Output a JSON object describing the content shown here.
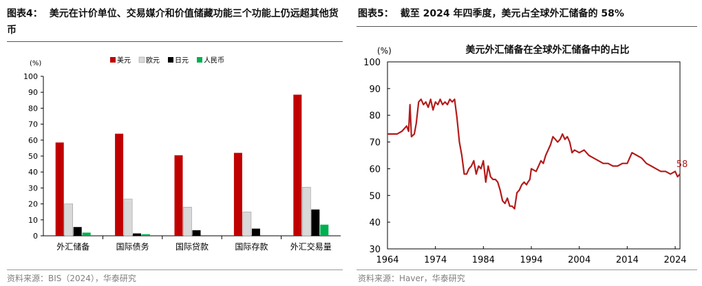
{
  "left": {
    "figure_no": "图表4：",
    "title": "美元在计价单位、交易媒介和价值储藏功能三个功能上仍远超其他货币",
    "source": "资料来源：BIS（2024），华泰研究",
    "chart_data": {
      "type": "bar",
      "title": "",
      "ylabel": "(%)",
      "ylim": [
        0,
        100
      ],
      "yticks": [
        0,
        10,
        20,
        30,
        40,
        50,
        60,
        70,
        80,
        90,
        100
      ],
      "categories": [
        "外汇储备",
        "国际债务",
        "国际贷款",
        "国际存款",
        "外汇交易量"
      ],
      "series": [
        {
          "name": "美元",
          "color": "#c00000",
          "values": [
            58.5,
            64,
            50.5,
            52,
            88.5
          ]
        },
        {
          "name": "欧元",
          "color": "#d9d9d9",
          "values": [
            20,
            23,
            18,
            15,
            30.5
          ]
        },
        {
          "name": "日元",
          "color": "#000000",
          "values": [
            5.5,
            1.5,
            3.5,
            4.5,
            16.5
          ]
        },
        {
          "name": "人民币",
          "color": "#00b050",
          "values": [
            2,
            1,
            0,
            0,
            7
          ]
        }
      ],
      "legend": "top"
    }
  },
  "right": {
    "figure_no": "图表5：",
    "title": "截至 2024 年四季度，美元占全球外汇储备的 58%",
    "source": "资料来源：Haver，华泰研究",
    "chart_data": {
      "type": "line",
      "title": "美元外汇储备在全球外汇储备中的占比",
      "ylabel": "(%)",
      "xlim": [
        1964,
        2025
      ],
      "ylim": [
        30,
        100
      ],
      "xticks": [
        1964,
        1974,
        1984,
        1994,
        2004,
        2014,
        2024
      ],
      "yticks": [
        30,
        40,
        50,
        60,
        70,
        80,
        90,
        100
      ],
      "series": [
        {
          "name": "美元占比",
          "color": "#b31b1b",
          "x": [
            1964,
            1966,
            1967,
            1968,
            1968.4,
            1968.7,
            1969,
            1969.6,
            1970,
            1970.5,
            1971,
            1971.5,
            1972,
            1972.5,
            1973,
            1973.5,
            1974,
            1974.5,
            1975,
            1975.5,
            1976,
            1976.5,
            1977,
            1977.5,
            1978,
            1978.5,
            1979,
            1979.5,
            1980,
            1980.5,
            1981,
            1981.5,
            1982,
            1982.5,
            1983,
            1983.5,
            1984,
            1984.5,
            1985,
            1985.5,
            1986,
            1986.5,
            1987,
            1987.5,
            1988,
            1988.5,
            1989,
            1989.5,
            1990,
            1990.5,
            1991,
            1991.5,
            1992,
            1992.5,
            1993,
            1993.3,
            1993.7,
            1994,
            1995,
            1996,
            1996.5,
            1997,
            1998,
            1998.5,
            1999,
            1999.5,
            2000,
            2000.5,
            2001,
            2001.5,
            2002,
            2002.5,
            2003,
            2004,
            2005,
            2006,
            2007,
            2008,
            2009,
            2010,
            2011,
            2012,
            2013,
            2014,
            2015,
            2016,
            2017,
            2018,
            2019,
            2020,
            2021,
            2022,
            2023,
            2024,
            2024.5,
            2025
          ],
          "y": [
            73,
            73,
            74,
            76,
            74,
            84,
            72,
            73,
            77,
            85,
            86,
            84,
            85,
            83,
            86,
            82,
            85,
            84,
            86,
            84,
            85,
            84,
            86,
            85,
            86,
            79,
            70,
            65,
            58,
            58,
            60,
            61,
            63,
            58,
            61,
            60,
            63,
            55,
            61,
            57,
            56,
            56,
            55,
            52,
            48,
            47,
            49,
            46,
            46,
            45,
            51,
            52,
            54,
            55,
            54,
            55,
            56,
            60,
            59,
            63,
            62,
            65,
            69,
            72,
            71,
            70,
            71,
            73,
            71,
            72,
            70,
            66,
            67,
            66,
            67,
            65,
            64,
            63,
            62,
            62,
            61,
            61,
            62,
            62,
            66,
            65,
            64,
            62,
            61,
            60,
            59,
            59,
            58,
            59,
            57,
            58
          ]
        }
      ],
      "annotation": {
        "text": "58",
        "x": 2024,
        "y": 58
      }
    }
  }
}
